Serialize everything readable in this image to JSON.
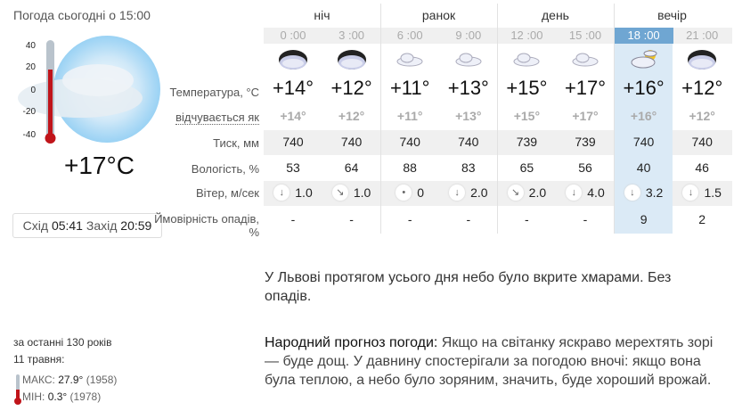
{
  "header": {
    "title": "Погода сьогодні о 15:00"
  },
  "current": {
    "temp": "+17°C",
    "scale": [
      "40",
      "20",
      "0",
      "-20",
      "-40"
    ],
    "sunrise_label": "Схід",
    "sunrise": "05:41",
    "sunset_label": "Захід",
    "sunset": "20:59",
    "icon": "cloudy-sun-icon",
    "thermometer_fill_percent": 71
  },
  "labels": {
    "temp": "Температура, °C",
    "feels": "відчувається як",
    "pressure": "Тиск, мм",
    "humidity": "Вологість, %",
    "wind": "Вітер, м/сек",
    "precip": "Ймовірність опадів, %"
  },
  "groups": [
    "ніч",
    "ранок",
    "день",
    "вечір"
  ],
  "columns": [
    {
      "time": "0 :00",
      "icon": "overcast-night-icon",
      "temp": "+14°",
      "feels": "+14°",
      "pressure": "740",
      "humidity": "53",
      "wind_dir": "↓",
      "wind": "1.0",
      "precip": "-"
    },
    {
      "time": "3 :00",
      "icon": "overcast-night-icon",
      "temp": "+12°",
      "feels": "+12°",
      "pressure": "740",
      "humidity": "64",
      "wind_dir": "↘",
      "wind": "1.0",
      "precip": "-"
    },
    {
      "time": "6 :00",
      "icon": "cloud-icon",
      "temp": "+11°",
      "feels": "+11°",
      "pressure": "740",
      "humidity": "88",
      "wind_dir": "•",
      "wind": "0",
      "precip": "-"
    },
    {
      "time": "9 :00",
      "icon": "cloud-icon",
      "temp": "+13°",
      "feels": "+13°",
      "pressure": "740",
      "humidity": "83",
      "wind_dir": "↓",
      "wind": "2.0",
      "precip": "-"
    },
    {
      "time": "12 :00",
      "icon": "cloud-icon",
      "temp": "+15°",
      "feels": "+15°",
      "pressure": "739",
      "humidity": "65",
      "wind_dir": "↘",
      "wind": "2.0",
      "precip": "-"
    },
    {
      "time": "15 :00",
      "icon": "cloud-icon",
      "temp": "+17°",
      "feels": "+17°",
      "pressure": "739",
      "humidity": "56",
      "wind_dir": "↓",
      "wind": "4.0",
      "precip": "-"
    },
    {
      "time": "18 :00",
      "icon": "partly-cloudy-icon",
      "temp": "+16°",
      "feels": "+16°",
      "pressure": "740",
      "humidity": "40",
      "wind_dir": "↓",
      "wind": "3.2",
      "precip": "9",
      "active": true
    },
    {
      "time": "21 :00",
      "icon": "overcast-night-icon",
      "temp": "+12°",
      "feels": "+12°",
      "pressure": "740",
      "humidity": "46",
      "wind_dir": "↓",
      "wind": "1.5",
      "precip": "2"
    }
  ],
  "description": "У Львові протягом усього дня небо було вкрите хмарами. Без опадів.",
  "folk": {
    "label": "Народний прогноз погоди:",
    "text": " Якщо на світанку яскраво мерехтять зорі — буде дощ. У давнину спостерігали за погодою вночі: якщо вона була теплою, а небо було зоряним, значить, буде хороший врожай."
  },
  "history": {
    "period": "за останні 130 років",
    "date": "11 травня:",
    "max_label": "МАКС:",
    "max": "27.9°",
    "max_year": "(1958)",
    "min_label": "МІН:",
    "min": "0.3°",
    "min_year": "(1978)"
  },
  "colors": {
    "highlight": "#dbeaf6",
    "active_time": "#6fa6d2",
    "thermometer": "#c0141a"
  }
}
